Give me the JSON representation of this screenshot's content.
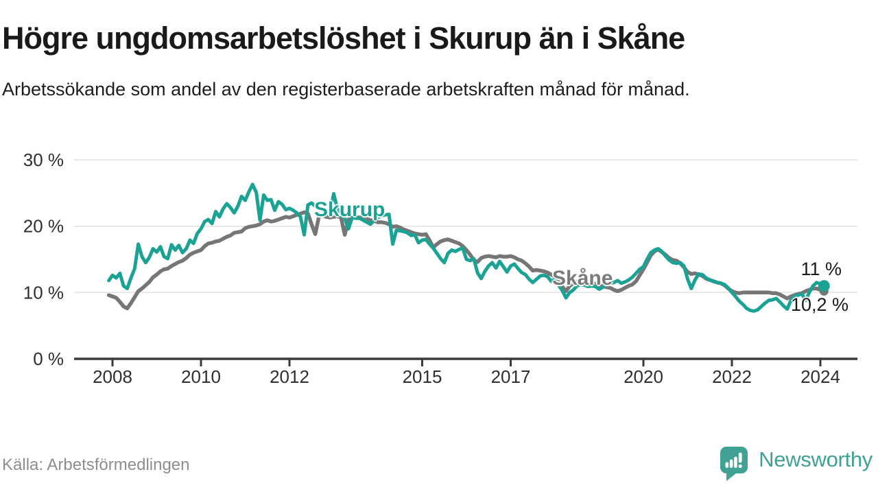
{
  "header": {
    "title": "Högre ungdomsarbetslöshet i Skurup än i Skåne",
    "subtitle": "Arbetssökande som andel av den registerbaserade arbetskraften månad för månad."
  },
  "footer": {
    "source": "Källa: Arbetsförmedlingen",
    "brand": "Newsworthy"
  },
  "colors": {
    "skurup_teal": "#1aa394",
    "skane_gray": "#767676",
    "axis": "#3a3a3a",
    "gridline": "#e2e2e2",
    "text_dark": "#1a1a1a",
    "tick_text": "#2f2f2f",
    "source_text": "#8e8e8e",
    "brand_teal": "#3fa294"
  },
  "chart_data": {
    "type": "line",
    "title": "Högre ungdomsarbetslöshet i Skurup än i Skåne",
    "subtitle": "Arbetssökande som andel av den registerbaserade arbetskraften månad för månad.",
    "unit": "%",
    "grid": "horizontal",
    "legend_position": "inline-labels",
    "x_axis": {
      "range": [
        2007.7,
        2024.7
      ],
      "ticks": [
        {
          "value": 2008,
          "label": "2008"
        },
        {
          "value": 2010,
          "label": "2010"
        },
        {
          "value": 2012,
          "label": "2012"
        },
        {
          "value": 2015,
          "label": "2015"
        },
        {
          "value": 2017,
          "label": "2017"
        },
        {
          "value": 2020,
          "label": "2020"
        },
        {
          "value": 2022,
          "label": "2022"
        },
        {
          "value": 2024,
          "label": "2024"
        }
      ]
    },
    "y_axis": {
      "range": [
        0,
        31
      ],
      "ticks": [
        {
          "value": 0,
          "label": "0 %"
        },
        {
          "value": 10,
          "label": "10 %"
        },
        {
          "value": 20,
          "label": "20 %"
        },
        {
          "value": 30,
          "label": "30 %"
        }
      ]
    },
    "series": [
      {
        "name": "Skurup",
        "color": "#1aa394",
        "end_label": "11 %",
        "end_value": 11.0,
        "start": 2007.9167,
        "step": 0.08333,
        "values": [
          11.8,
          12.6,
          12.2,
          12.9,
          11.0,
          10.6,
          12.2,
          13.6,
          17.3,
          15.4,
          14.5,
          15.3,
          16.6,
          16.1,
          16.9,
          15.4,
          15.1,
          17.2,
          16.4,
          17.1,
          16.0,
          16.6,
          17.9,
          17.4,
          18.9,
          19.6,
          20.7,
          21.0,
          20.4,
          22.2,
          21.4,
          22.6,
          23.4,
          22.8,
          22.0,
          23.0,
          24.5,
          23.9,
          25.2,
          26.3,
          25.1,
          20.9,
          24.7,
          23.9,
          24.0,
          22.4,
          23.7,
          23.3,
          22.5,
          22.7,
          22.4,
          22.0,
          21.4,
          18.7,
          23.2,
          23.5,
          23.0,
          22.6,
          22.4,
          21.8,
          22.0,
          24.9,
          22.6,
          21.6,
          21.2,
          19.6,
          21.3,
          21.2,
          21.2,
          20.9,
          20.6,
          20.3,
          20.9,
          21.3,
          21.6,
          21.7,
          21.8,
          17.3,
          19.4,
          19.3,
          19.2,
          19.0,
          18.6,
          18.7,
          17.5,
          17.9,
          18.0,
          17.3,
          16.7,
          15.9,
          15.1,
          14.5,
          15.9,
          16.4,
          16.2,
          16.5,
          16.7,
          15.0,
          14.8,
          15.1,
          13.0,
          12.1,
          13.2,
          14.0,
          14.5,
          13.7,
          14.7,
          13.9,
          13.1,
          14.0,
          14.3,
          13.6,
          13.0,
          12.7,
          12.0,
          11.5,
          12.0,
          12.5,
          12.6,
          12.4,
          11.7,
          12.0,
          11.1,
          10.3,
          9.2,
          10.0,
          10.4,
          11.0,
          11.2,
          11.1,
          10.9,
          11.0,
          10.9,
          10.5,
          10.8,
          11.3,
          11.4,
          11.5,
          11.8,
          11.4,
          11.6,
          11.9,
          12.3,
          12.9,
          13.5,
          13.9,
          15.0,
          16.0,
          16.4,
          16.6,
          16.2,
          15.5,
          14.9,
          14.5,
          14.4,
          14.5,
          14.0,
          12.0,
          10.6,
          11.9,
          12.8,
          12.7,
          12.2,
          11.9,
          11.7,
          11.5,
          11.4,
          11.2,
          10.7,
          10.0,
          9.4,
          8.7,
          8.2,
          7.6,
          7.3,
          7.2,
          7.4,
          7.9,
          8.4,
          8.8,
          8.9,
          9.1,
          8.6,
          8.0,
          7.5,
          8.8,
          9.4,
          9.6,
          9.8,
          8.8,
          10.0,
          11.0,
          11.5,
          11.3,
          11.0
        ]
      },
      {
        "name": "Skåne",
        "color": "#767676",
        "end_label": "10,2 %",
        "end_value": 10.2,
        "start": 2007.9167,
        "step": 0.08333,
        "values": [
          9.6,
          9.4,
          9.2,
          8.6,
          7.9,
          7.6,
          8.4,
          9.3,
          10.2,
          10.6,
          11.1,
          11.6,
          12.3,
          12.7,
          13.2,
          13.5,
          13.6,
          14.0,
          14.3,
          14.6,
          14.8,
          15.2,
          15.7,
          16.0,
          16.2,
          16.4,
          17.0,
          17.4,
          17.5,
          17.7,
          17.8,
          18.1,
          18.4,
          18.6,
          19.0,
          19.1,
          19.2,
          19.7,
          19.9,
          20.0,
          20.1,
          20.3,
          20.7,
          20.9,
          20.7,
          20.8,
          21.0,
          21.2,
          21.4,
          21.3,
          21.5,
          21.7,
          21.9,
          22.1,
          21.9,
          20.3,
          18.8,
          21.5,
          21.6,
          21.4,
          21.3,
          21.4,
          21.5,
          21.3,
          18.7,
          21.0,
          21.5,
          21.4,
          21.3,
          21.3,
          21.1,
          20.9,
          20.8,
          20.6,
          20.6,
          20.5,
          20.3,
          19.9,
          20.0,
          19.8,
          19.5,
          19.3,
          19.1,
          18.9,
          18.8,
          18.7,
          18.8,
          17.9,
          16.8,
          17.3,
          17.7,
          17.9,
          18.0,
          17.8,
          17.6,
          17.4,
          17.0,
          16.4,
          15.7,
          14.9,
          14.6,
          15.2,
          15.4,
          15.5,
          15.4,
          15.3,
          15.5,
          15.4,
          15.4,
          15.5,
          15.3,
          15.0,
          14.8,
          14.4,
          13.9,
          13.3,
          13.4,
          13.3,
          13.2,
          13.0,
          12.7,
          12.4,
          11.7,
          10.9,
          10.2,
          11.0,
          11.4,
          11.6,
          11.7,
          11.7,
          11.6,
          11.5,
          11.3,
          11.1,
          11.0,
          10.8,
          10.7,
          10.4,
          10.2,
          10.4,
          10.7,
          11.0,
          11.2,
          11.7,
          12.6,
          13.5,
          14.5,
          15.6,
          16.2,
          16.5,
          16.1,
          15.7,
          15.2,
          14.9,
          14.8,
          14.4,
          13.8,
          13.1,
          12.8,
          12.9,
          12.7,
          12.5,
          12.1,
          11.9,
          11.7,
          11.5,
          11.4,
          11.1,
          10.6,
          10.2,
          10.0,
          9.9,
          10.0,
          10.0,
          10.0,
          10.0,
          10.0,
          10.0,
          10.0,
          10.0,
          9.9,
          9.9,
          9.7,
          9.4,
          9.1,
          9.4,
          9.6,
          9.8,
          9.9,
          10.2,
          10.4,
          10.6,
          10.6,
          10.4,
          10.2
        ]
      }
    ]
  }
}
